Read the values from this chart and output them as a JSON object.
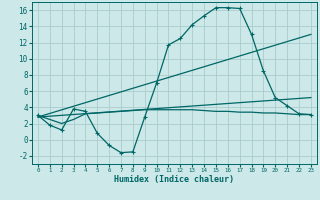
{
  "xlabel": "Humidex (Indice chaleur)",
  "bg_color": "#cce8e8",
  "grid_color": "#aacccc",
  "line_color": "#006666",
  "xlim": [
    -0.5,
    23.5
  ],
  "ylim": [
    -3.0,
    17.0
  ],
  "yticks": [
    -2,
    0,
    2,
    4,
    6,
    8,
    10,
    12,
    14,
    16
  ],
  "xticks": [
    0,
    1,
    2,
    3,
    4,
    5,
    6,
    7,
    8,
    9,
    10,
    11,
    12,
    13,
    14,
    15,
    16,
    17,
    18,
    19,
    20,
    21,
    22,
    23
  ],
  "curve1_x": [
    0,
    1,
    2,
    3,
    4,
    5,
    6,
    7,
    8,
    9,
    10,
    11,
    12,
    13,
    14,
    15,
    16,
    17,
    18,
    19,
    20,
    21,
    22,
    23
  ],
  "curve1_y": [
    3.0,
    1.8,
    1.2,
    3.8,
    3.5,
    0.8,
    -0.7,
    -1.6,
    -1.5,
    2.8,
    7.0,
    11.7,
    12.5,
    14.2,
    15.3,
    16.3,
    16.3,
    16.2,
    13.0,
    8.5,
    5.2,
    4.2,
    3.2,
    3.1
  ],
  "curve2_x": [
    0,
    1,
    2,
    3,
    4,
    5,
    6,
    7,
    8,
    9,
    10,
    11,
    12,
    13,
    14,
    15,
    16,
    17,
    18,
    19,
    20,
    21,
    22,
    23
  ],
  "curve2_y": [
    3.0,
    2.5,
    2.0,
    2.5,
    3.2,
    3.3,
    3.4,
    3.5,
    3.6,
    3.7,
    3.7,
    3.7,
    3.7,
    3.7,
    3.6,
    3.5,
    3.5,
    3.4,
    3.4,
    3.3,
    3.3,
    3.2,
    3.1,
    3.1
  ],
  "curve3_x": [
    0,
    23
  ],
  "curve3_y": [
    2.8,
    13.0
  ],
  "curve4_x": [
    0,
    23
  ],
  "curve4_y": [
    2.8,
    5.2
  ]
}
